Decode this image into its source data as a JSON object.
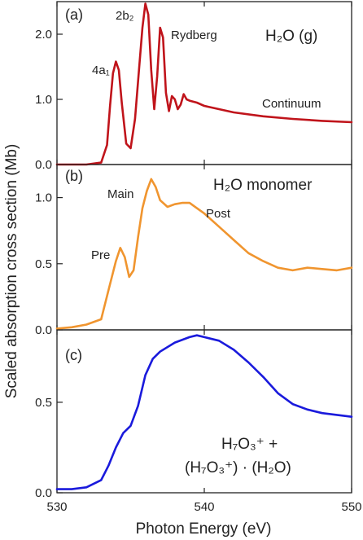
{
  "chart_data": {
    "type": "line",
    "xlabel": "Photon Energy (eV)",
    "ylabel": "Scaled absorption cross section (Mb)",
    "xlim": [
      530,
      550
    ],
    "x_ticks": [
      "530",
      "540",
      "550"
    ],
    "panels": [
      {
        "label": "(a)",
        "color": "#c0141b",
        "ylim": [
          0,
          2.5
        ],
        "y_ticks": [
          "0.0",
          "1.0",
          "2.0"
        ],
        "annotations": {
          "species": "H₂O (g)",
          "peak1": "4a₁",
          "peak2": "2b₂",
          "rydberg": "Rydberg",
          "continuum": "Continuum"
        },
        "x": [
          530,
          532,
          533,
          533.4,
          533.6,
          533.8,
          534.0,
          534.2,
          534.4,
          534.7,
          535.0,
          535.3,
          535.6,
          535.8,
          536.0,
          536.2,
          536.4,
          536.6,
          536.8,
          537.0,
          537.2,
          537.4,
          537.6,
          537.8,
          538.0,
          538.2,
          538.4,
          538.6,
          538.8,
          539.0,
          539.5,
          540,
          542,
          544,
          546,
          548,
          550
        ],
        "y": [
          0.0,
          0.0,
          0.03,
          0.3,
          0.9,
          1.4,
          1.58,
          1.45,
          0.95,
          0.32,
          0.25,
          0.7,
          1.55,
          2.1,
          2.47,
          2.3,
          1.45,
          0.85,
          1.35,
          2.1,
          1.95,
          1.1,
          0.82,
          1.05,
          1.0,
          0.85,
          0.92,
          1.08,
          1.0,
          0.98,
          0.95,
          0.9,
          0.8,
          0.74,
          0.7,
          0.67,
          0.65
        ]
      },
      {
        "label": "(b)",
        "color": "#f0952f",
        "ylim": [
          0,
          1.25
        ],
        "y_ticks": [
          "0.0",
          "0.5",
          "1.0"
        ],
        "annotations": {
          "species": "H₂O monomer",
          "pre": "Pre",
          "main": "Main",
          "post": "Post"
        },
        "x": [
          530,
          531,
          532,
          533,
          533.5,
          534.0,
          534.3,
          534.6,
          534.9,
          535.2,
          535.5,
          535.8,
          536.1,
          536.4,
          536.7,
          537.0,
          537.5,
          538.0,
          538.5,
          539.0,
          539.5,
          540,
          541,
          542,
          543,
          544,
          545,
          546,
          547,
          548,
          549,
          550
        ],
        "y": [
          0.01,
          0.02,
          0.04,
          0.08,
          0.3,
          0.52,
          0.62,
          0.55,
          0.4,
          0.45,
          0.7,
          0.92,
          1.05,
          1.14,
          1.08,
          0.98,
          0.93,
          0.95,
          0.96,
          0.96,
          0.92,
          0.88,
          0.78,
          0.68,
          0.58,
          0.52,
          0.47,
          0.45,
          0.47,
          0.46,
          0.45,
          0.47
        ]
      },
      {
        "label": "(c)",
        "color": "#1a1adc",
        "ylim": [
          0,
          0.9
        ],
        "y_ticks": [
          "0.0",
          "0.5"
        ],
        "annotations": {
          "species_line1": "H₇O₃⁺ +",
          "species_line2": "(H₇O₃⁺) · (H₂O)"
        },
        "x": [
          530,
          531,
          532,
          533,
          533.5,
          534.0,
          534.5,
          535.0,
          535.5,
          536.0,
          536.5,
          537,
          538,
          539,
          539.5,
          540,
          541,
          542,
          543,
          544,
          545,
          546,
          547,
          548,
          549,
          550
        ],
        "y": [
          0.02,
          0.02,
          0.03,
          0.07,
          0.15,
          0.25,
          0.33,
          0.37,
          0.48,
          0.65,
          0.74,
          0.78,
          0.83,
          0.86,
          0.87,
          0.86,
          0.84,
          0.79,
          0.72,
          0.64,
          0.55,
          0.49,
          0.46,
          0.44,
          0.43,
          0.42
        ]
      }
    ]
  }
}
